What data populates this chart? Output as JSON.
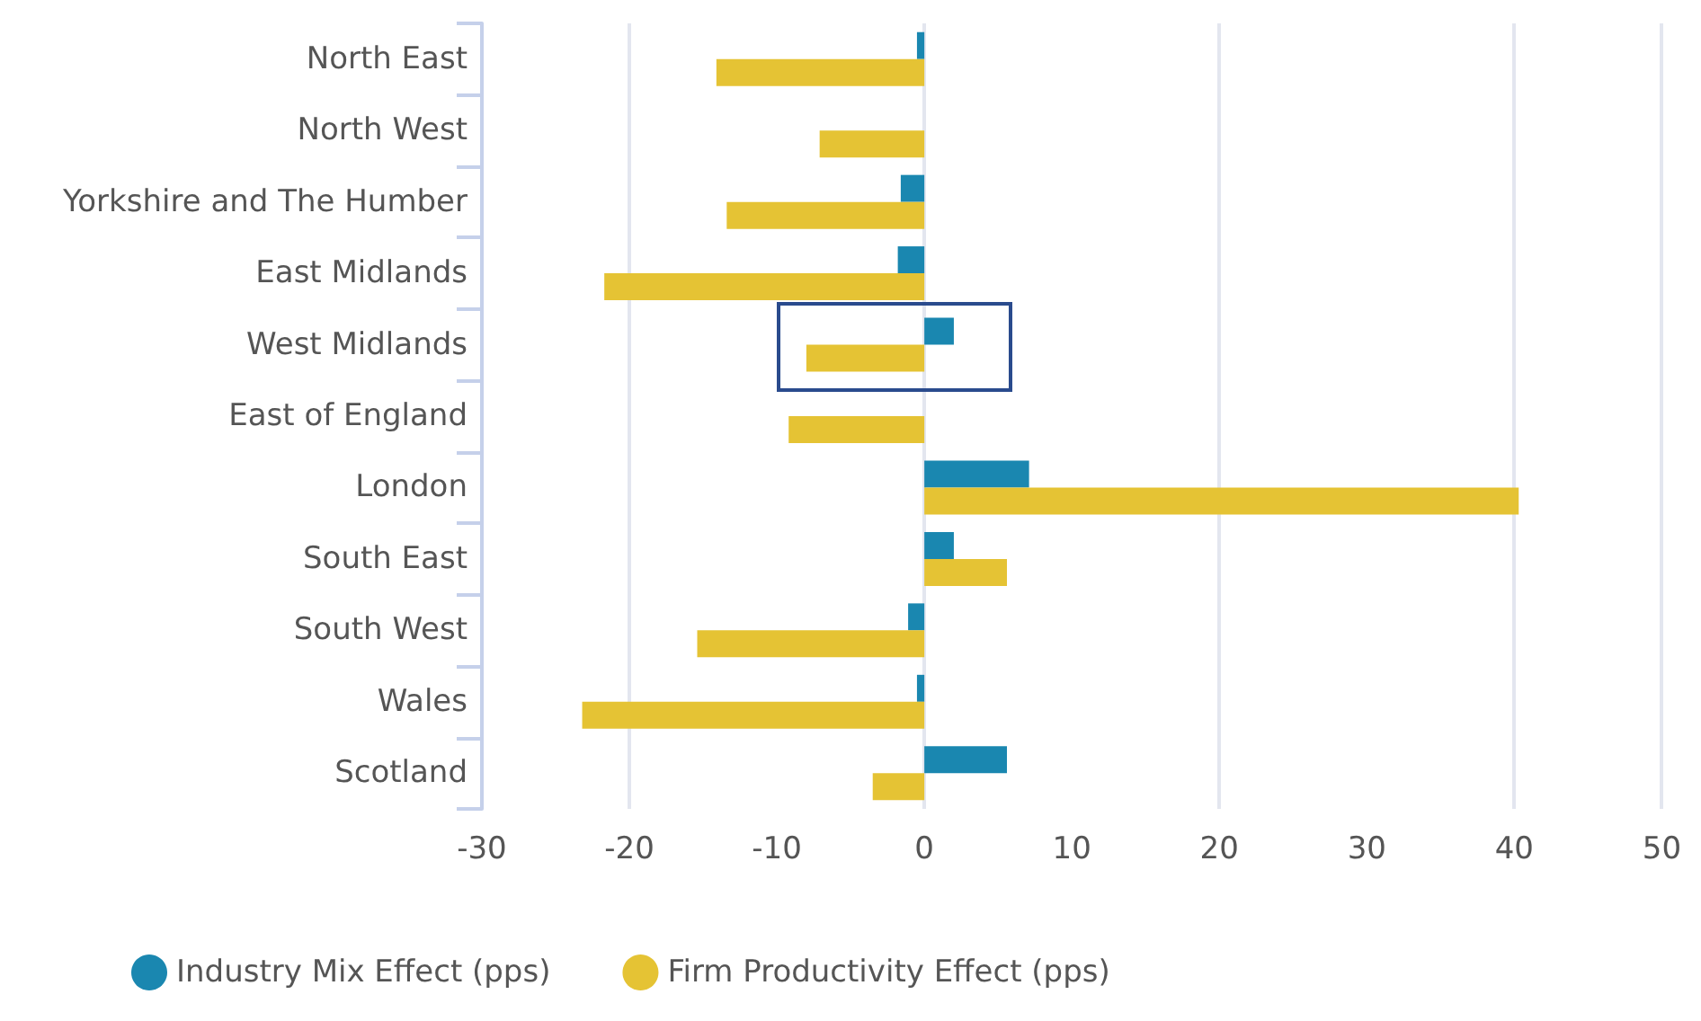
{
  "chart_data": {
    "type": "bar",
    "orientation": "horizontal",
    "categories": [
      "North East",
      "North West",
      "Yorkshire and The Humber",
      "East Midlands",
      "West Midlands",
      "East of England",
      "London",
      "South East",
      "South West",
      "Wales",
      "Scotland"
    ],
    "series": [
      {
        "name": "Industry Mix Effect (pps)",
        "color": "#1a87b0",
        "values": [
          -0.5,
          0,
          -1.6,
          -1.8,
          2.0,
          0,
          7.1,
          2.0,
          -1.1,
          -0.5,
          5.6
        ]
      },
      {
        "name": "Firm Productivity Effect (pps)",
        "color": "#e5c334",
        "values": [
          -14.1,
          -7.1,
          -13.4,
          -21.7,
          -8.0,
          -9.2,
          40.3,
          5.6,
          -15.4,
          -23.2,
          -3.5
        ]
      }
    ],
    "xlim": [
      -30,
      50
    ],
    "xticks": [
      -30,
      -20,
      -10,
      0,
      10,
      20,
      30,
      40,
      50
    ],
    "grid": "x",
    "legend": "bottom left"
  }
}
